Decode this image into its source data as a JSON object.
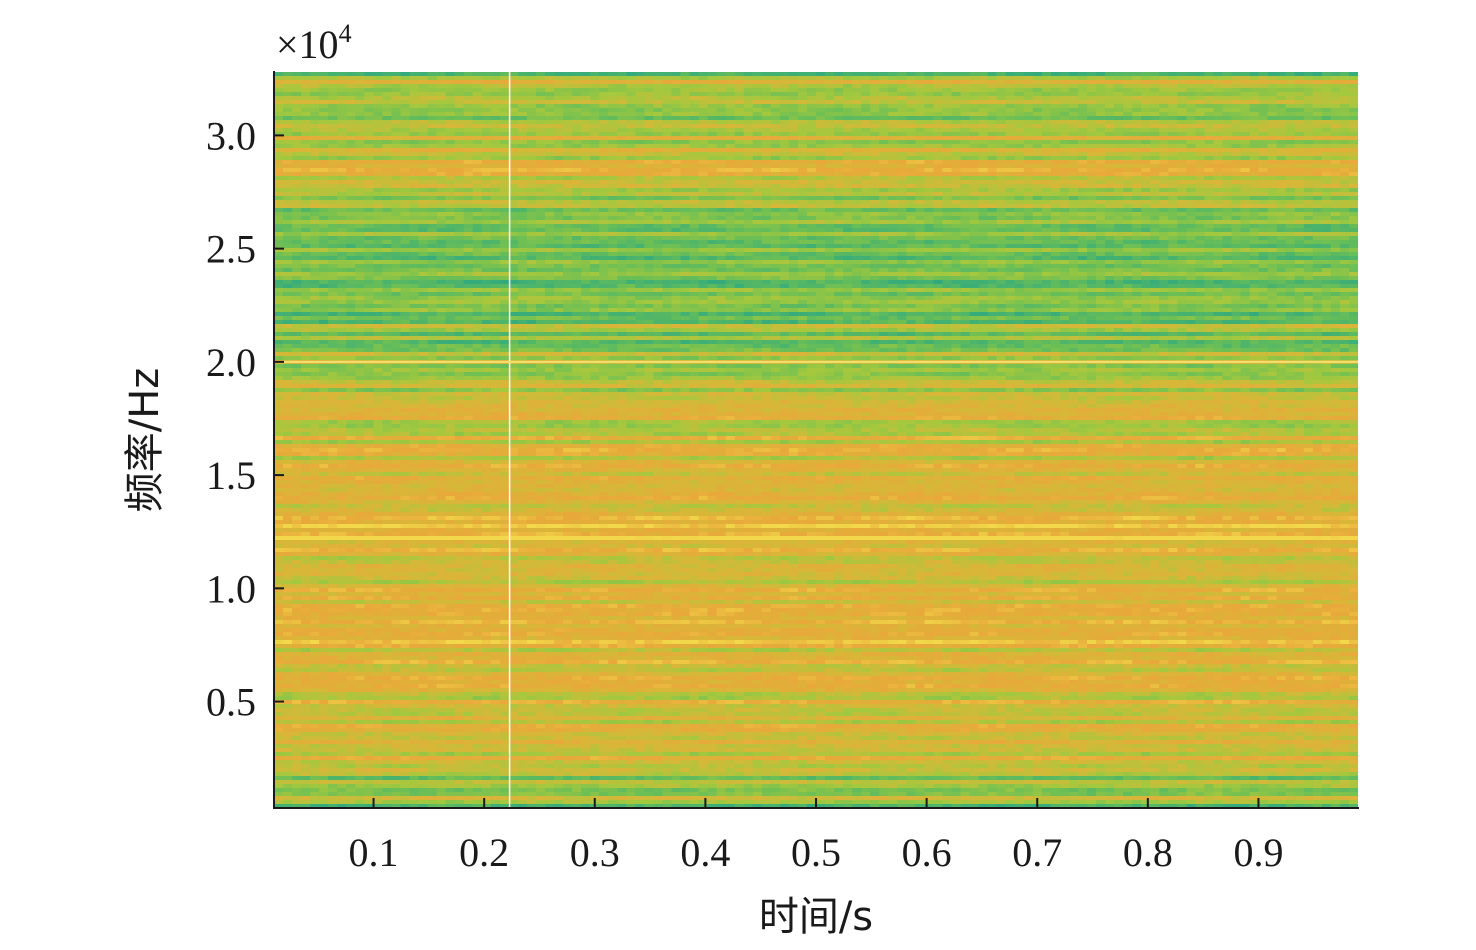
{
  "chart_data": {
    "type": "heatmap",
    "title": "",
    "xlabel": "时间/s",
    "ylabel": "频率/Hz",
    "y_scale_label": "×10",
    "y_scale_exponent": "4",
    "xlim": [
      0.01,
      0.99
    ],
    "ylim": [
      0.03,
      3.28
    ],
    "x_ticks": [
      0.1,
      0.2,
      0.3,
      0.4,
      0.5,
      0.6,
      0.7,
      0.8,
      0.9
    ],
    "x_tick_labels": [
      "0.1",
      "0.2",
      "0.3",
      "0.4",
      "0.5",
      "0.6",
      "0.7",
      "0.8",
      "0.9"
    ],
    "y_ticks": [
      0.5,
      1.0,
      1.5,
      2.0,
      2.5,
      3.0
    ],
    "y_tick_labels": [
      "0.5",
      "1.0",
      "1.5",
      "2.0",
      "2.5",
      "3.0"
    ],
    "colormap": [
      "#1f9e89",
      "#3aae78",
      "#6cbf55",
      "#a4c83e",
      "#d6b838",
      "#e8a93a",
      "#f2d84a"
    ],
    "vertical_line_x": 0.223,
    "horizontal_line_y": 2.0,
    "y_intensity_profile": [
      {
        "y": 0.05,
        "level": 0.35
      },
      {
        "y": 0.3,
        "level": 0.62
      },
      {
        "y": 0.6,
        "level": 0.72
      },
      {
        "y": 1.0,
        "level": 0.7
      },
      {
        "y": 1.4,
        "level": 0.74
      },
      {
        "y": 1.7,
        "level": 0.66
      },
      {
        "y": 1.9,
        "level": 0.55
      },
      {
        "y": 2.2,
        "level": 0.35
      },
      {
        "y": 2.5,
        "level": 0.3
      },
      {
        "y": 2.7,
        "level": 0.42
      },
      {
        "y": 2.85,
        "level": 0.72
      },
      {
        "y": 3.0,
        "level": 0.45
      },
      {
        "y": 3.28,
        "level": 0.38
      }
    ]
  }
}
